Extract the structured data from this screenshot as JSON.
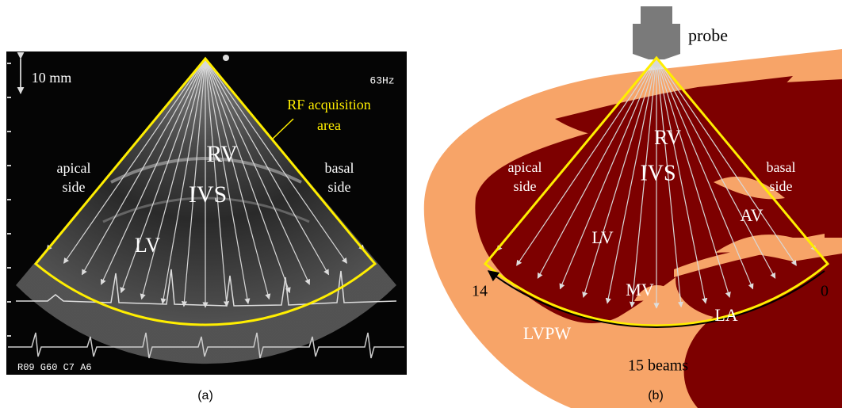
{
  "panel_a": {
    "scale_label": "10 mm",
    "frame_rate": "63Hz",
    "rf_label": [
      "RF acquisition",
      "area"
    ],
    "apical_label": [
      "apical",
      "side"
    ],
    "basal_label": [
      "basal",
      "side"
    ],
    "rv": "RV",
    "ivs": "IVS",
    "lv": "LV",
    "settings": "R09 G60 C7 A6",
    "caption": "(a)"
  },
  "panel_b": {
    "probe": "probe",
    "rv": "RV",
    "ivs": "IVS",
    "apical_label": [
      "apical",
      "side"
    ],
    "basal_label": [
      "basal",
      "side"
    ],
    "av": "AV",
    "lv": "LV",
    "mv": "MV",
    "la": "LA",
    "lvpw": "LVPW",
    "beams_label": "15 beams",
    "beam_first": 14,
    "beam_last": 0,
    "caption": "(b)"
  }
}
